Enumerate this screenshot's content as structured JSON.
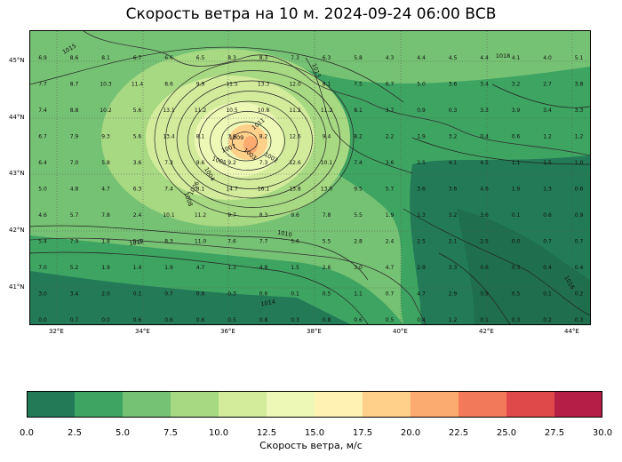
{
  "title": "Скорость ветра на 10 м. 2024-09-24 06:00 ВСВ",
  "map": {
    "lat_labels": [
      "45°N",
      "44°N",
      "43°N",
      "42°N",
      "41°N"
    ],
    "lon_labels": [
      "32°E",
      "34°E",
      "36°E",
      "38°E",
      "40°E",
      "42°E",
      "44°E"
    ],
    "isobar_labels": [
      "1015",
      "1013",
      "1011",
      "1009",
      "1007",
      "1005",
      "1003",
      "1002",
      "1004",
      "1006",
      "1008",
      "1010",
      "1012",
      "1014",
      "1016",
      "1018"
    ],
    "wind_values": [
      [
        "6.9",
        "8.6",
        "8.1",
        "6.7",
        "6.6",
        "6.5",
        "8.3",
        "8.3",
        "7.3",
        "6.3",
        "5.8",
        "4.3",
        "4.4",
        "4.5",
        "4.4",
        "4.1",
        "4.0",
        "5.1"
      ],
      [
        "7.7",
        "8.7",
        "10.3",
        "11.4",
        "8.6",
        "9.9",
        "11.5",
        "13.3",
        "12.0",
        "8.1",
        "7.5",
        "6.7",
        "5.0",
        "3.6",
        "3.4",
        "3.2",
        "2.7",
        "3.8"
      ],
      [
        "7.4",
        "8.8",
        "10.2",
        "5.6",
        "13.1",
        "11.2",
        "10.5",
        "10.8",
        "11.2",
        "11.2",
        "8.1",
        "3.7",
        "0.9",
        "0.3",
        "3.3",
        "3.9",
        "3.4",
        "3.3"
      ],
      [
        "6.7",
        "7.9",
        "9.3",
        "5.6",
        "13.4",
        "8.1",
        "7.9",
        "8.2",
        "12.6",
        "9.4",
        "8.2",
        "2.2",
        "1.9",
        "3.2",
        "0.4",
        "0.6",
        "1.2",
        "1.2"
      ],
      [
        "6.4",
        "7.0",
        "5.8",
        "3.6",
        "7.3",
        "9.6",
        "9.2",
        "7.3",
        "12.6",
        "10.1",
        "7.4",
        "3.6",
        "2.5",
        "4.1",
        "4.5",
        "1.1",
        "1.5",
        "1.0"
      ],
      [
        "5.0",
        "4.8",
        "4.7",
        "6.3",
        "7.4",
        "8.1",
        "14.7",
        "16.1",
        "13.8",
        "13.0",
        "9.5",
        "5.7",
        "3.6",
        "3.6",
        "4.6",
        "1.9",
        "1.3",
        "0.6"
      ],
      [
        "4.6",
        "5.7",
        "7.8",
        "2.4",
        "10.1",
        "11.2",
        "9.7",
        "8.3",
        "9.6",
        "7.8",
        "5.5",
        "1.9",
        "1.3",
        "3.2",
        "3.6",
        "0.1",
        "0.6",
        "0.9"
      ],
      [
        "5.4",
        "7.9",
        "1.8",
        "5.3",
        "8.3",
        "11.0",
        "7.6",
        "7.7",
        "5.6",
        "5.5",
        "2.8",
        "2.4",
        "2.5",
        "2.1",
        "2.5",
        "0.0",
        "0.7",
        "0.7"
      ],
      [
        "7.0",
        "5.2",
        "1.9",
        "1.4",
        "1.9",
        "4.7",
        "1.3",
        "4.8",
        "1.5",
        "2.6",
        "3.0",
        "4.7",
        "2.9",
        "3.3",
        "0.6",
        "0.3",
        "0.4",
        "0.4"
      ],
      [
        "3.0",
        "3.4",
        "2.0",
        "0.1",
        "0.7",
        "0.6",
        "0.3",
        "0.6",
        "0.1",
        "0.5",
        "1.1",
        "0.7",
        "4.7",
        "2.9",
        "0.9",
        "0.5",
        "0.1",
        "0.2"
      ],
      [
        "0.0",
        "0.7",
        "0.0",
        "0.6",
        "0.6",
        "0.6",
        "0.5",
        "0.8",
        "0.3",
        "0.8",
        "0.6",
        "0.5",
        "0.4",
        "1.2",
        "0.1",
        "0.3",
        "0.2",
        "0.3"
      ]
    ]
  },
  "colorbar": {
    "label": "Скорость ветра, м/с",
    "ticks": [
      "0.0",
      "2.5",
      "5.0",
      "7.5",
      "10.0",
      "12.5",
      "15.0",
      "17.5",
      "20.0",
      "22.5",
      "25.0",
      "27.5",
      "30.0"
    ],
    "colors": [
      "#237a57",
      "#3ea462",
      "#76c274",
      "#a7d882",
      "#d3ec9c",
      "#eef8b6",
      "#fff2b2",
      "#fed089",
      "#fbab6f",
      "#f3795b",
      "#e0494a",
      "#b51f47"
    ]
  }
}
